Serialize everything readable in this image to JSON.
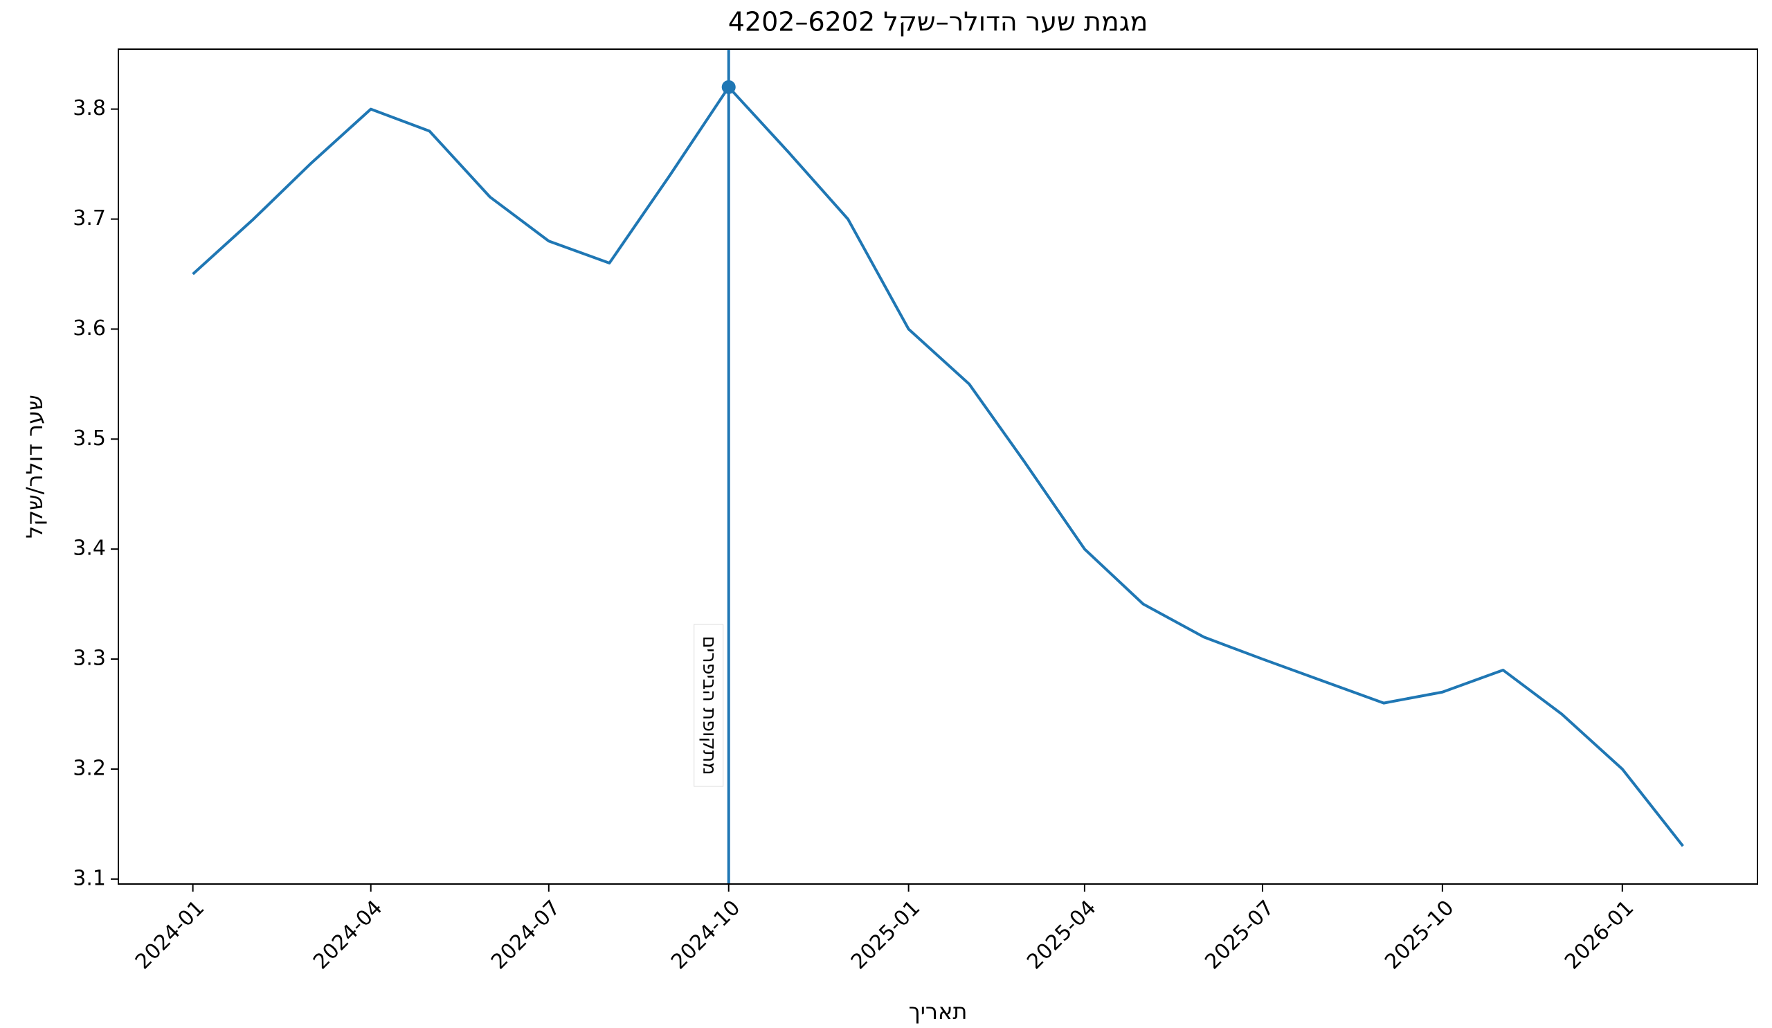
{
  "chart_data": {
    "type": "line",
    "title": "מגמת שער הדולר–שקל 6202–4202",
    "x_label": "תאריך",
    "y_label": "שער דולר/שקל",
    "annotation": "מתקופת הביפרים",
    "x": [
      "2024-01",
      "2024-02",
      "2024-03",
      "2024-04",
      "2024-05",
      "2024-06",
      "2024-07",
      "2024-08",
      "2024-09",
      "2024-10",
      "2024-11",
      "2024-12",
      "2025-01",
      "2025-02",
      "2025-03",
      "2025-04",
      "2025-05",
      "2025-06",
      "2025-07",
      "2025-08",
      "2025-09",
      "2025-10",
      "2025-11",
      "2025-12",
      "2026-01",
      "2026-02"
    ],
    "series": [
      {
        "name": "שער דולר/שקל",
        "color": "#1f77b4",
        "values": [
          3.65,
          3.7,
          3.75,
          3.8,
          3.78,
          3.72,
          3.68,
          3.66,
          3.74,
          3.82,
          3.76,
          3.7,
          3.6,
          3.55,
          3.48,
          3.4,
          3.35,
          3.32,
          3.3,
          3.28,
          3.26,
          3.27,
          3.29,
          3.25,
          3.2,
          3.13
        ]
      }
    ],
    "vline": "2024-10",
    "annotation_color": "#ff0000",
    "xticks": [
      "2024-01",
      "2024-04",
      "2024-07",
      "2024-10",
      "2025-01",
      "2025-04",
      "2025-07",
      "2025-10",
      "2026-01"
    ],
    "ylim": [
      3.0955,
      3.8545
    ],
    "yticks": [
      3.1,
      3.2,
      3.3,
      3.4,
      3.5,
      3.6,
      3.7,
      3.8
    ],
    "grid": false
  }
}
